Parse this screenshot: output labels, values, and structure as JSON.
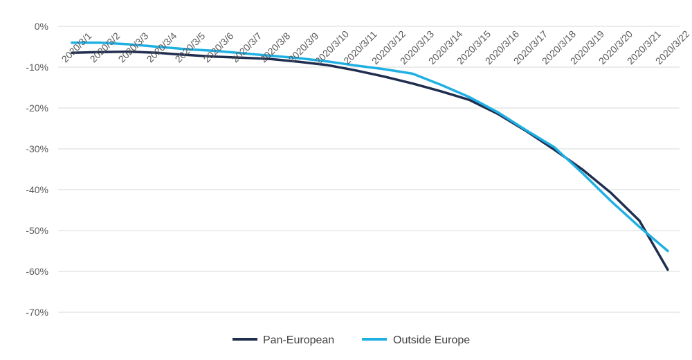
{
  "chart_data": {
    "type": "line",
    "title": "",
    "xlabel": "",
    "ylabel": "",
    "categories": [
      "2020/3/1",
      "2020/3/2",
      "2020/3/3",
      "2020/3/4",
      "2020/3/5",
      "2020/3/6",
      "2020/3/7",
      "2020/3/8",
      "2020/3/9",
      "2020/3/10",
      "2020/3/11",
      "2020/3/12",
      "2020/3/13",
      "2020/3/14",
      "2020/3/15",
      "2020/3/16",
      "2020/3/17",
      "2020/3/18",
      "2020/3/19",
      "2020/3/20",
      "2020/3/21",
      "2020/3/22"
    ],
    "yticks": [
      "0%",
      "-10%",
      "-20%",
      "-30%",
      "-40%",
      "-50%",
      "-60%",
      "-70%"
    ],
    "ylim": [
      -70,
      0
    ],
    "y_unit": "%",
    "grid": true,
    "legend_position": "bottom",
    "series": [
      {
        "name": "Pan-European",
        "color": "#1f2d4f",
        "values": [
          -6.5,
          -6.3,
          -6.2,
          -6.5,
          -7.0,
          -7.4,
          -7.7,
          -8.0,
          -8.7,
          -9.5,
          -10.8,
          -12.3,
          -14.0,
          -15.9,
          -18.0,
          -21.4,
          -25.6,
          -30.2,
          -35.1,
          -40.8,
          -47.6,
          -59.6
        ]
      },
      {
        "name": "Outside Europe",
        "color": "#1fb0e3",
        "values": [
          -4.0,
          -4.0,
          -4.4,
          -5.0,
          -5.6,
          -6.0,
          -6.6,
          -7.2,
          -7.8,
          -8.6,
          -9.6,
          -10.5,
          -11.6,
          -14.3,
          -17.3,
          -21.0,
          -25.4,
          -29.6,
          -36.0,
          -42.8,
          -49.1,
          -55.0
        ]
      }
    ]
  }
}
